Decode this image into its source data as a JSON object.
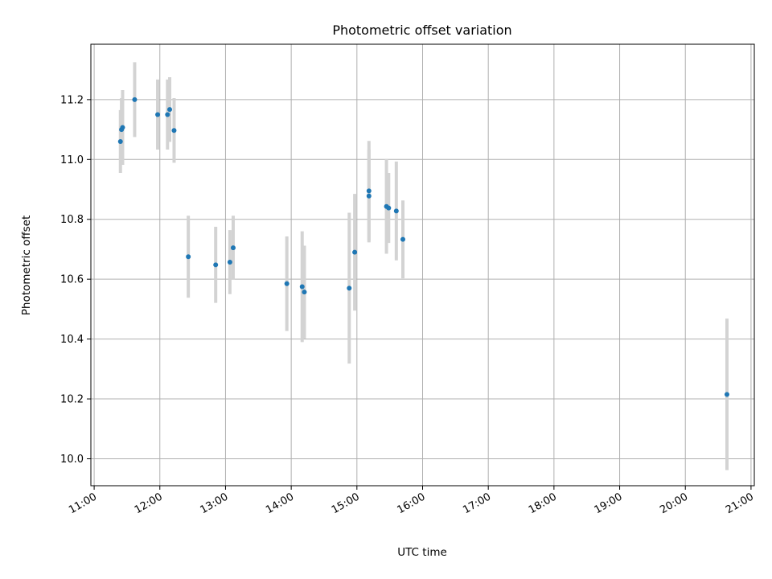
{
  "chart_data": {
    "type": "scatter",
    "title": "Photometric offset variation",
    "xlabel": "UTC time",
    "ylabel": "Photometric offset",
    "grid": true,
    "colors": {
      "marker": "#1f77b4",
      "errorbar": "#d3d3d3",
      "grid": "#b0b0b0"
    },
    "x_ticks": [
      "11:00",
      "12:00",
      "13:00",
      "14:00",
      "15:00",
      "16:00",
      "17:00",
      "18:00",
      "19:00",
      "20:00",
      "21:00"
    ],
    "y_ticks": [
      "10.0",
      "10.2",
      "10.4",
      "10.6",
      "10.8",
      "11.0",
      "11.2"
    ],
    "xlim": [
      "10:57",
      "21:03"
    ],
    "ylim": [
      9.91,
      11.385
    ],
    "series": [
      {
        "points": [
          {
            "x": "11:24",
            "y": 11.06,
            "err": 0.105
          },
          {
            "x": "11:25",
            "y": 11.1,
            "err": 0.105
          },
          {
            "x": "11:26",
            "y": 11.107,
            "err": 0.125
          },
          {
            "x": "11:37",
            "y": 11.2,
            "err": 0.125
          },
          {
            "x": "11:58",
            "y": 11.15,
            "err": 0.117
          },
          {
            "x": "12:07",
            "y": 11.15,
            "err": 0.117
          },
          {
            "x": "12:09",
            "y": 11.167,
            "err": 0.108
          },
          {
            "x": "12:13",
            "y": 11.097,
            "err": 0.108
          },
          {
            "x": "12:26",
            "y": 10.675,
            "err": 0.137
          },
          {
            "x": "12:51",
            "y": 10.648,
            "err": 0.127
          },
          {
            "x": "13:04",
            "y": 10.657,
            "err": 0.107
          },
          {
            "x": "13:07",
            "y": 10.705,
            "err": 0.107
          },
          {
            "x": "13:56",
            "y": 10.585,
            "err": 0.158
          },
          {
            "x": "14:10",
            "y": 10.575,
            "err": 0.185
          },
          {
            "x": "14:12",
            "y": 10.557,
            "err": 0.155
          },
          {
            "x": "14:53",
            "y": 10.57,
            "err": 0.252
          },
          {
            "x": "14:58",
            "y": 10.69,
            "err": 0.195
          },
          {
            "x": "15:11",
            "y": 10.878,
            "err": 0.155
          },
          {
            "x": "15:11",
            "y": 10.895,
            "err": 0.167
          },
          {
            "x": "15:27",
            "y": 10.843,
            "err": 0.158
          },
          {
            "x": "15:29",
            "y": 10.838,
            "err": 0.117
          },
          {
            "x": "15:36",
            "y": 10.828,
            "err": 0.165
          },
          {
            "x": "15:42",
            "y": 10.733,
            "err": 0.13
          },
          {
            "x": "20:38",
            "y": 10.215,
            "err": 0.253
          }
        ]
      }
    ]
  }
}
